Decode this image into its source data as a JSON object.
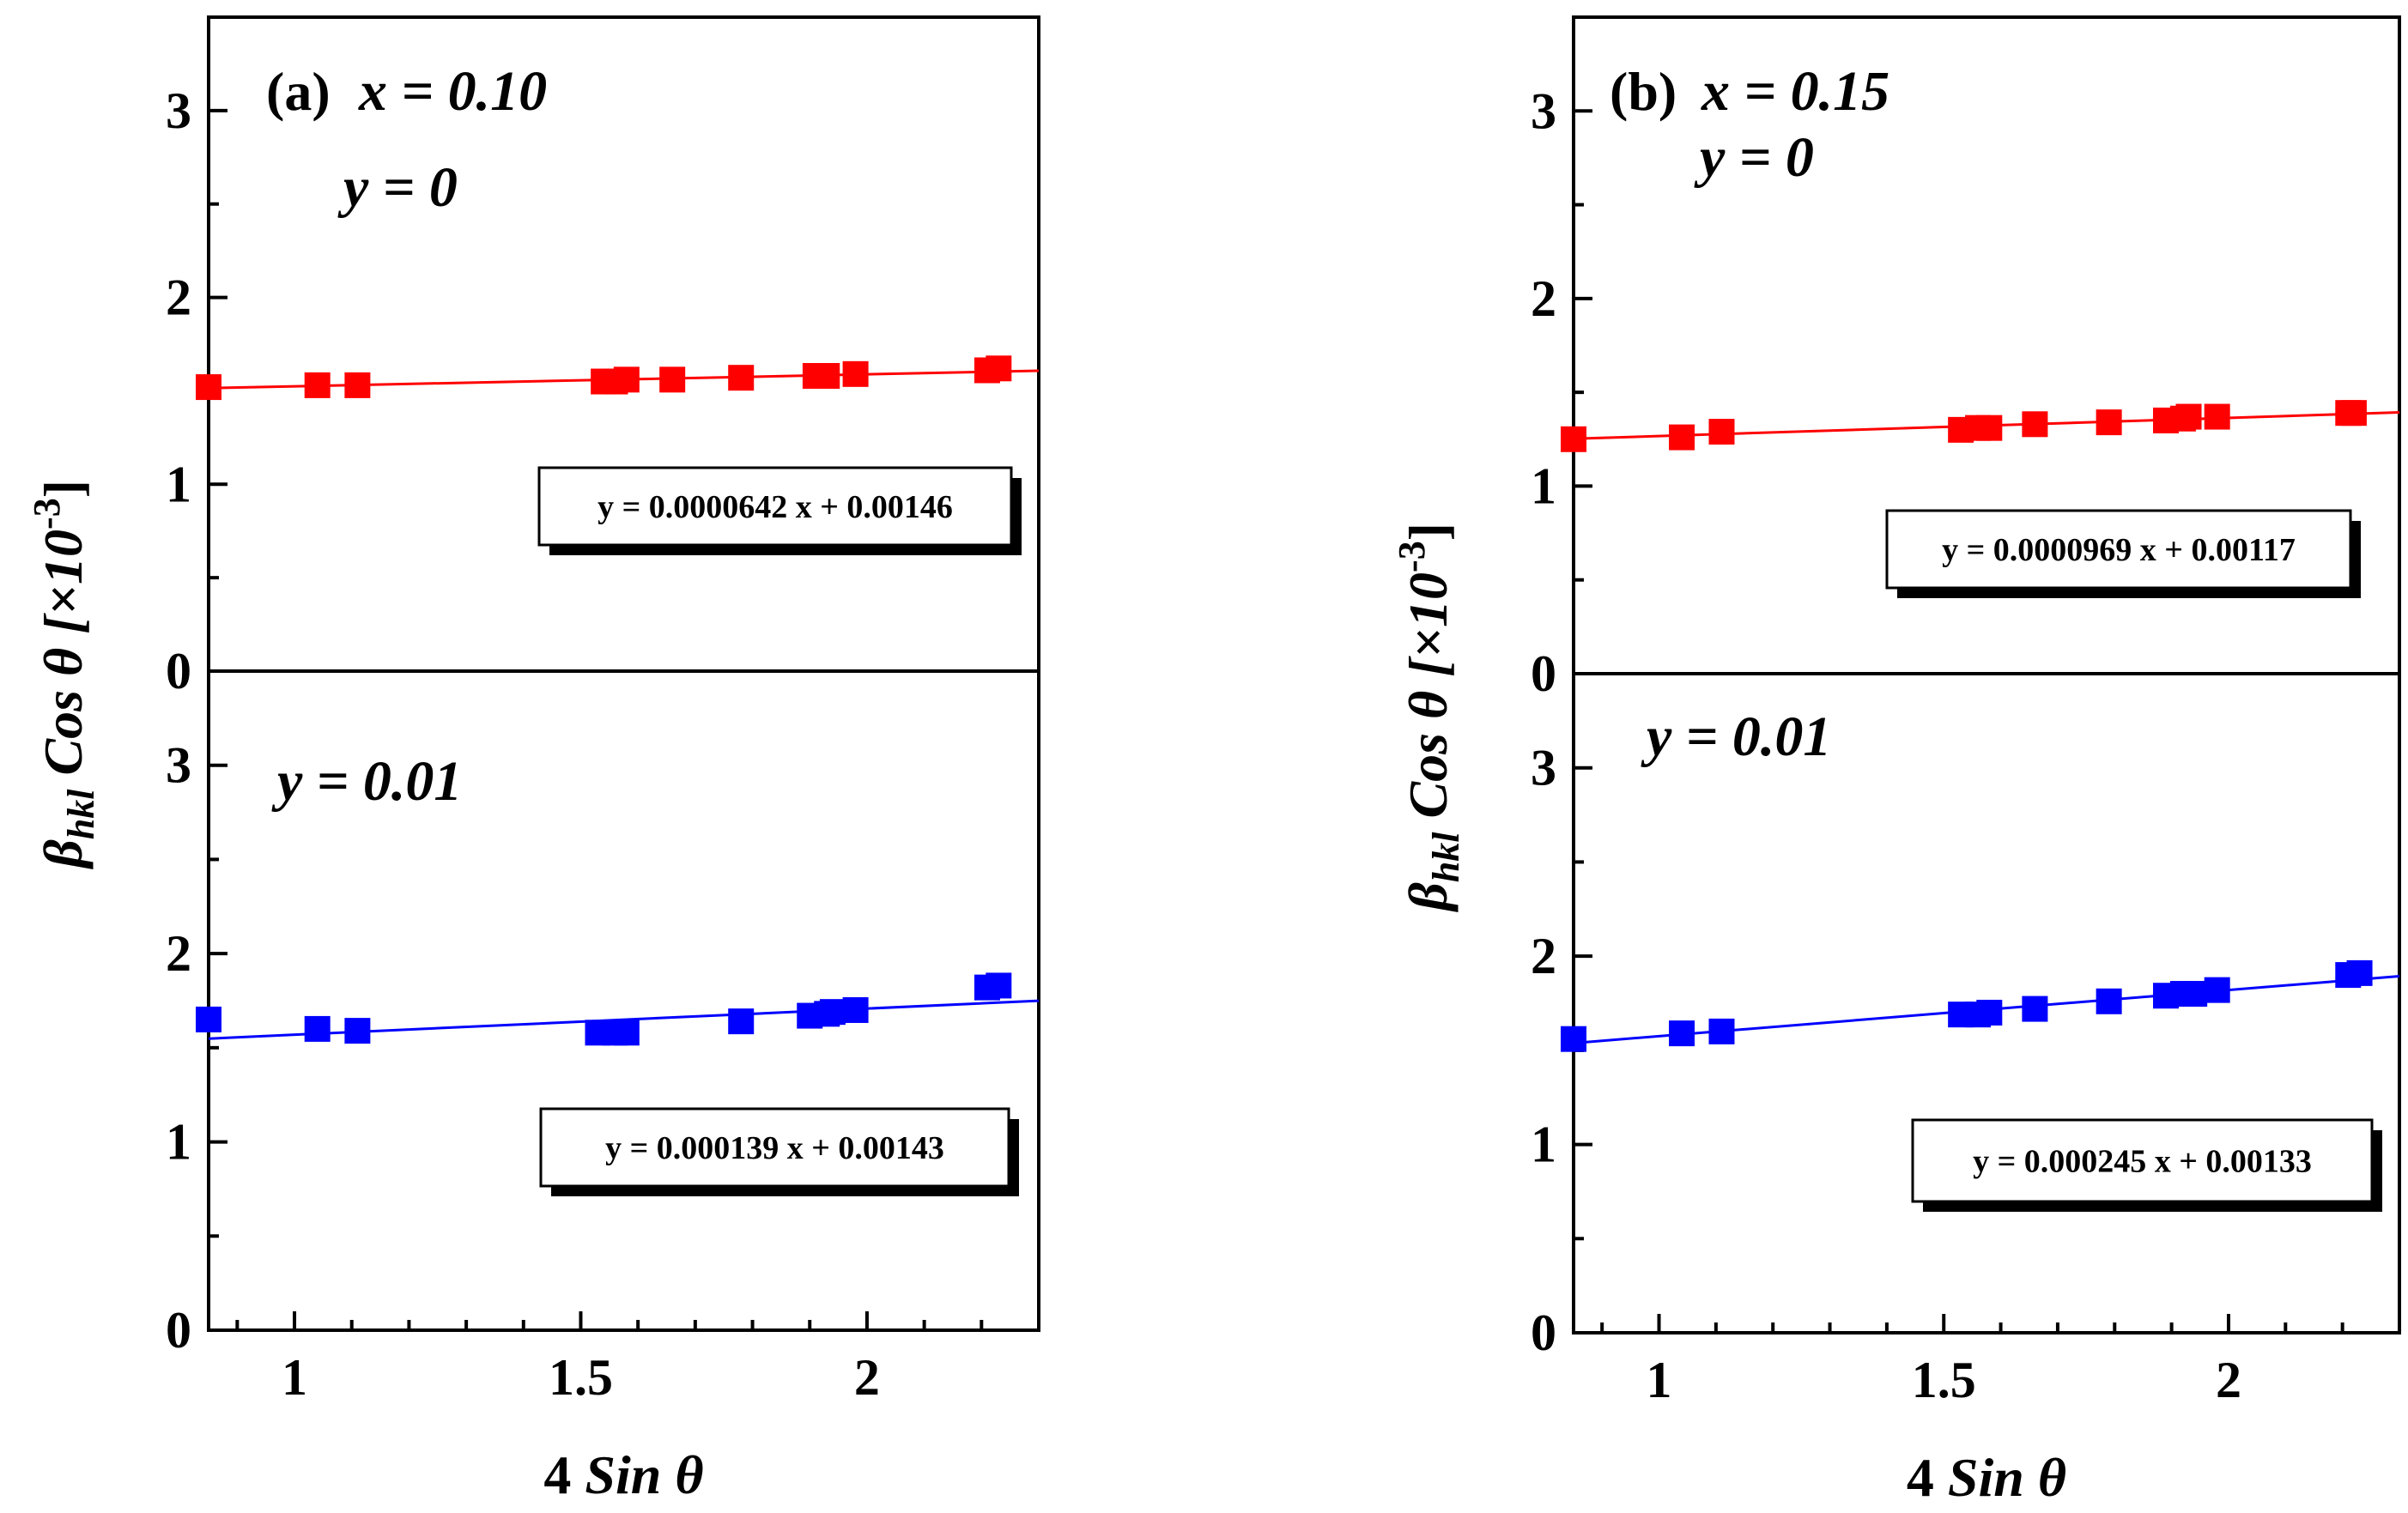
{
  "chart_data": [
    {
      "type": "scatter",
      "panel_label": "(a)",
      "x_param": "x = 0.10",
      "xlabel_num": "4",
      "xlabel_text": "Sin θ",
      "ylabel": "β",
      "ylabel_sub": "hkl",
      "ylabel_rest": " Cos θ [×10",
      "ylabel_exp": "-3",
      "ylabel_close": "]",
      "xlim": [
        0.85,
        2.3
      ],
      "ylim": [
        0,
        3.5
      ],
      "x_tick_values": [
        1,
        1.5,
        2
      ],
      "x_tick_labels": [
        "1",
        "1.5",
        "2"
      ],
      "y_tick_values": [
        0,
        1,
        2,
        3
      ],
      "y_tick_labels": [
        "0",
        "1",
        "2",
        "3"
      ],
      "subplots": [
        {
          "position": "top",
          "annotation": "y = 0",
          "color": "#ff0000",
          "x": [
            0.85,
            1.04,
            1.11,
            1.54,
            1.56,
            1.58,
            1.66,
            1.78,
            1.91,
            1.93,
            1.98,
            2.21,
            2.23
          ],
          "y": [
            1.52,
            1.53,
            1.53,
            1.55,
            1.55,
            1.56,
            1.56,
            1.57,
            1.58,
            1.58,
            1.59,
            1.61,
            1.62
          ],
          "fit_slope": 0.0642,
          "fit_intercept": 1.46,
          "equation": "y = 0.0000642 x + 0.00146"
        },
        {
          "position": "bottom",
          "annotation": "y = 0.01",
          "color": "#0000ff",
          "x": [
            0.85,
            1.04,
            1.11,
            1.53,
            1.56,
            1.58,
            1.78,
            1.9,
            1.93,
            1.94,
            1.98,
            2.21,
            2.23
          ],
          "y": [
            1.65,
            1.6,
            1.59,
            1.58,
            1.58,
            1.58,
            1.64,
            1.67,
            1.68,
            1.69,
            1.7,
            1.82,
            1.83
          ],
          "fit_slope": 0.139,
          "fit_intercept": 1.43,
          "equation": "y = 0.000139 x + 0.00143"
        }
      ]
    },
    {
      "type": "scatter",
      "panel_label": "(b)",
      "x_param": "x = 0.15",
      "xlabel_num": "4",
      "xlabel_text": "Sin θ",
      "ylabel": "β",
      "ylabel_sub": "hkl",
      "ylabel_rest": " Cos θ [×10",
      "ylabel_exp": "-3",
      "ylabel_close": "]",
      "xlim": [
        0.85,
        2.3
      ],
      "ylim": [
        0,
        3.5
      ],
      "x_tick_values": [
        1,
        1.5,
        2
      ],
      "x_tick_labels": [
        "1",
        "1.5",
        "2"
      ],
      "y_tick_values": [
        0,
        1,
        2,
        3
      ],
      "y_tick_labels": [
        "0",
        "1",
        "2",
        "3"
      ],
      "subplots": [
        {
          "position": "top",
          "annotation": "y = 0",
          "color": "#ff0000",
          "x": [
            0.85,
            1.04,
            1.11,
            1.53,
            1.56,
            1.58,
            1.66,
            1.79,
            1.89,
            1.92,
            1.93,
            1.98,
            2.21,
            2.22
          ],
          "y": [
            1.25,
            1.26,
            1.29,
            1.3,
            1.31,
            1.31,
            1.33,
            1.34,
            1.35,
            1.36,
            1.37,
            1.37,
            1.39,
            1.39
          ],
          "fit_slope": 0.0969,
          "fit_intercept": 1.17,
          "equation": "y = 0.0000969 x + 0.00117"
        },
        {
          "position": "bottom",
          "annotation": "y = 0.01",
          "color": "#0000ff",
          "x": [
            0.85,
            1.04,
            1.11,
            1.53,
            1.56,
            1.58,
            1.66,
            1.79,
            1.89,
            1.92,
            1.94,
            1.98,
            2.21,
            2.23
          ],
          "y": [
            1.56,
            1.59,
            1.6,
            1.69,
            1.69,
            1.7,
            1.72,
            1.76,
            1.79,
            1.8,
            1.8,
            1.82,
            1.9,
            1.91
          ],
          "fit_slope": 0.245,
          "fit_intercept": 1.33,
          "equation": "y = 0.000245 x + 0.00133"
        }
      ]
    }
  ]
}
